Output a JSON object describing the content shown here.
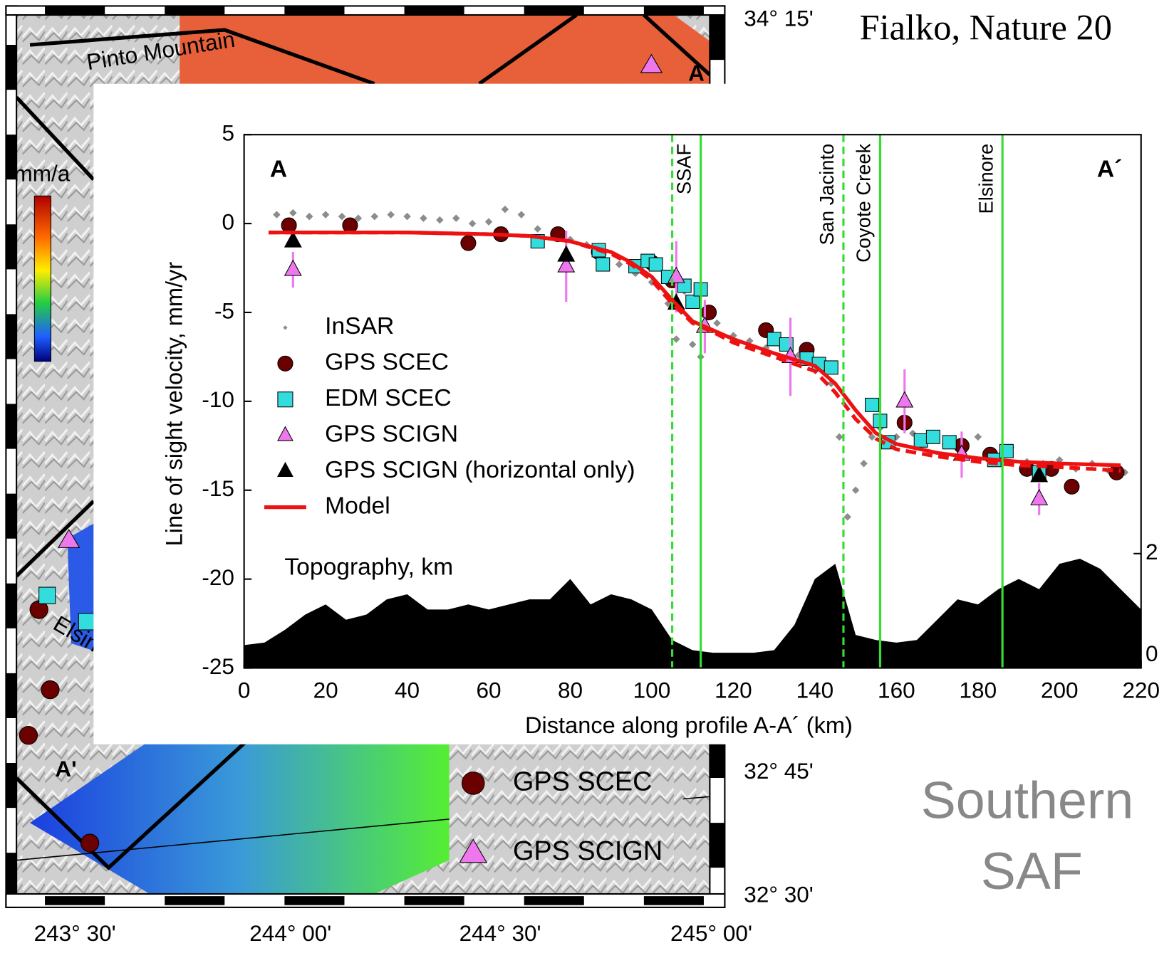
{
  "header": {
    "citation": "Fialko, Nature 20",
    "region": [
      "Southern",
      "SAF"
    ]
  },
  "map": {
    "lat_labels": [
      "34° 15'",
      "32° 45'",
      "32° 30'"
    ],
    "lon_labels": [
      "243° 30'",
      "244° 00'",
      "244° 30'",
      "245° 00'"
    ],
    "colorbar_unit": "mm/a",
    "features": [
      "Pinto Mountain",
      "Elsinore",
      "A",
      "A'"
    ],
    "legend": [
      "GPS SCEC",
      "GPS SCIGN"
    ]
  },
  "chart_data": {
    "type": "profile",
    "xlabel": "Distance along profile A-A´ (km)",
    "ylabel": "Line of sight velocity, mm/yr",
    "xlim": [
      0,
      220
    ],
    "xticks": [
      0,
      20,
      40,
      60,
      80,
      100,
      120,
      140,
      160,
      180,
      200,
      220
    ],
    "ylim": [
      -25,
      5
    ],
    "yticks": [
      5,
      0,
      -5,
      -10,
      -15,
      -20,
      -25
    ],
    "y2lim": [
      -0.25,
      10.24
    ],
    "y2ticks": [
      2,
      0
    ],
    "annotations": [
      "A",
      "A´",
      "Topography, km"
    ],
    "faults": [
      {
        "x": 105,
        "dashed": true,
        "label": "SSAF"
      },
      {
        "x": 112,
        "dashed": false
      },
      {
        "x": 147,
        "dashed": true,
        "label": "San Jacinto"
      },
      {
        "x": 156,
        "dashed": false,
        "label": "Coyote Creek"
      },
      {
        "x": 186,
        "dashed": false,
        "label": "Elsinore"
      }
    ],
    "fault_color": "#33dd33",
    "series": [
      {
        "name": "InSAR",
        "kind": "diamond",
        "color": "#8c8c8c",
        "x": [
          8,
          12,
          16,
          20,
          24,
          28,
          32,
          36,
          40,
          44,
          48,
          52,
          56,
          60,
          64,
          68,
          72,
          76,
          80,
          84,
          88,
          92,
          96,
          100,
          104,
          106,
          108,
          110,
          112,
          116,
          120,
          124,
          128,
          132,
          136,
          140,
          144,
          146,
          148,
          150,
          152,
          154,
          156,
          160,
          164,
          168,
          172,
          176,
          180,
          184,
          188,
          192,
          196,
          200,
          204,
          208,
          212,
          216
        ],
        "values": [
          0.5,
          0.6,
          0.4,
          0.5,
          0.4,
          0.3,
          0.4,
          0.5,
          0.4,
          0.3,
          0.2,
          0.3,
          0.0,
          0.1,
          0.8,
          0.5,
          -0.3,
          -0.5,
          -0.9,
          -1.2,
          -1.8,
          -2.3,
          -2.8,
          -3.3,
          -4.5,
          -6.5,
          -3.8,
          -6.8,
          -7.5,
          -5.6,
          -6.3,
          -6.6,
          -7.0,
          -7.0,
          -7.4,
          -7.7,
          -9.0,
          -12.0,
          -16.5,
          -15.0,
          -13.5,
          -12.0,
          -11.5,
          -12.0,
          -11.8,
          -12.1,
          -12.4,
          -12.6,
          -12.0,
          -13.2,
          -12.6,
          -13.4,
          -13.5,
          -13.3,
          -13.8,
          -13.5,
          -13.9,
          -14.0
        ]
      },
      {
        "name": "GPS SCEC",
        "kind": "circle",
        "color": "#6b0000",
        "x": [
          11,
          26,
          55,
          63,
          77,
          87,
          100,
          105,
          114,
          128,
          138,
          162,
          176,
          183,
          192,
          198,
          203,
          214
        ],
        "values": [
          -0.1,
          -0.1,
          -1.1,
          -0.6,
          -0.6,
          -1.6,
          -2.2,
          -3.2,
          -5.0,
          -6.0,
          -7.1,
          -11.2,
          -12.5,
          -13.0,
          -13.8,
          -13.8,
          -14.8,
          -14.0
        ]
      },
      {
        "name": "EDM SCEC",
        "kind": "square",
        "color": "#33dddd",
        "x": [
          72,
          87,
          88,
          96,
          99,
          101,
          104,
          108,
          110,
          112,
          130,
          133,
          138,
          141,
          144,
          154,
          156,
          158,
          166,
          169,
          173,
          184,
          187,
          195
        ],
        "values": [
          -1.0,
          -1.5,
          -2.3,
          -2.4,
          -2.1,
          -2.3,
          -3.0,
          -3.5,
          -4.4,
          -3.7,
          -6.5,
          -6.8,
          -7.6,
          -7.9,
          -8.1,
          -10.2,
          -11.1,
          -12.3,
          -12.2,
          -12.0,
          -12.3,
          -13.3,
          -12.8,
          -14.0
        ]
      },
      {
        "name": "GPS SCIGN",
        "kind": "triangle",
        "color": "#ee77ee",
        "x": [
          12,
          79,
          106,
          113,
          134,
          162,
          176,
          195
        ],
        "values": [
          -2.6,
          -2.4,
          -3.0,
          -5.8,
          -7.5,
          -10.0,
          -13.0,
          -15.5
        ],
        "errors": [
          1.0,
          2.0,
          2.0,
          1.5,
          2.2,
          1.8,
          1.3,
          0.9
        ]
      },
      {
        "name": "GPS SCIGN (horizontal only)",
        "kind": "triangle",
        "color": "#000000",
        "x": [
          12,
          79,
          106,
          195
        ],
        "values": [
          -1.0,
          -1.8,
          -4.5,
          -14.2
        ]
      },
      {
        "name": "Model",
        "kind": "line",
        "color": "#ee1111",
        "x": [
          6,
          20,
          40,
          60,
          70,
          80,
          90,
          95,
          100,
          105,
          110,
          115,
          120,
          130,
          140,
          145,
          150,
          155,
          160,
          170,
          180,
          190,
          200,
          215
        ],
        "values": [
          -0.5,
          -0.5,
          -0.5,
          -0.6,
          -0.7,
          -1.0,
          -1.6,
          -2.2,
          -3.0,
          -4.3,
          -5.5,
          -6.0,
          -6.5,
          -7.3,
          -8.0,
          -9.0,
          -10.5,
          -11.8,
          -12.4,
          -12.9,
          -13.2,
          -13.4,
          -13.5,
          -13.6
        ]
      },
      {
        "kind": "dashed",
        "color": "#ee1111",
        "x": [
          6,
          20,
          40,
          60,
          70,
          80,
          90,
          95,
          100,
          105,
          110,
          115,
          120,
          130,
          140,
          145,
          150,
          155,
          160,
          170,
          180,
          190,
          200,
          215
        ],
        "values": [
          -0.5,
          -0.5,
          -0.5,
          -0.6,
          -0.7,
          -1.0,
          -1.7,
          -2.3,
          -3.2,
          -4.5,
          -5.6,
          -6.1,
          -6.7,
          -7.5,
          -8.3,
          -9.5,
          -11.0,
          -12.1,
          -12.7,
          -13.1,
          -13.4,
          -13.6,
          -13.7,
          -13.9
        ]
      },
      {
        "kind": "area",
        "axis": "y2",
        "color": "#000000",
        "x": [
          0,
          5,
          10,
          15,
          20,
          25,
          30,
          35,
          40,
          45,
          50,
          55,
          60,
          65,
          70,
          75,
          80,
          85,
          90,
          95,
          100,
          105,
          110,
          115,
          120,
          125,
          130,
          135,
          140,
          145,
          150,
          155,
          160,
          165,
          170,
          175,
          180,
          185,
          190,
          195,
          200,
          205,
          210,
          215,
          220
        ],
        "values": [
          0.2,
          0.25,
          0.5,
          0.8,
          1.0,
          0.7,
          0.8,
          1.1,
          1.2,
          0.9,
          0.9,
          1.0,
          0.9,
          1.0,
          1.1,
          1.1,
          1.5,
          1.0,
          1.2,
          1.1,
          0.9,
          0.3,
          0.1,
          0.05,
          0.05,
          0.05,
          0.1,
          0.6,
          1.5,
          1.8,
          0.4,
          0.3,
          0.25,
          0.3,
          0.7,
          1.1,
          1.0,
          1.3,
          1.5,
          1.3,
          1.8,
          1.9,
          1.7,
          1.3,
          0.9
        ]
      }
    ]
  }
}
